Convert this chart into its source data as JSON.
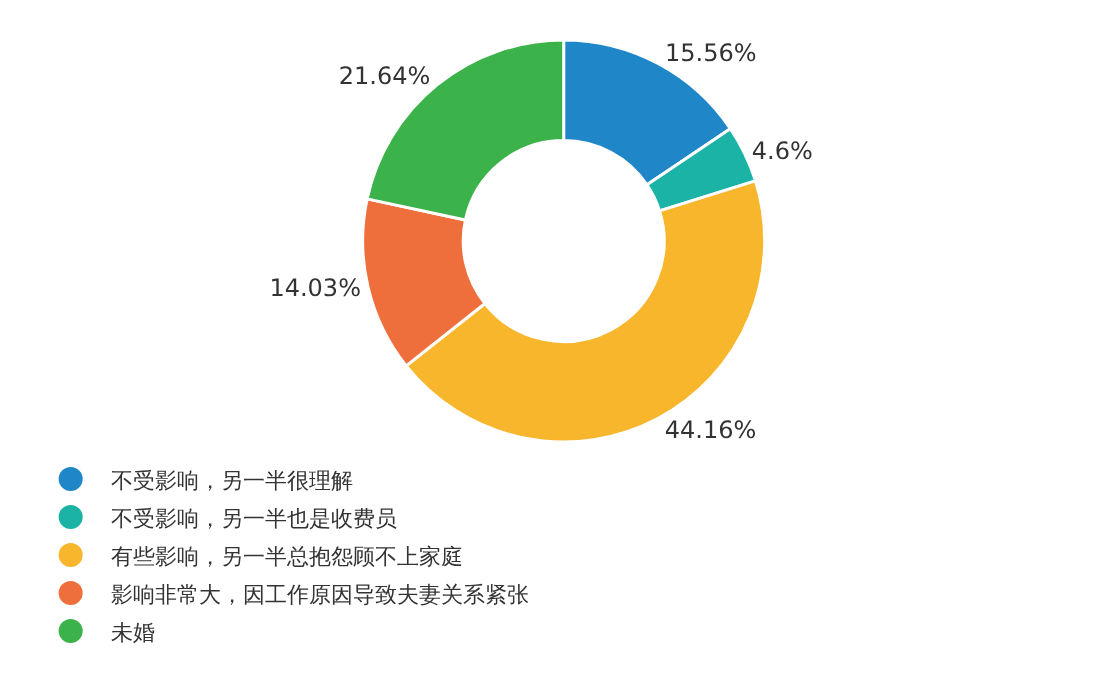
{
  "chart_data": {
    "type": "donut",
    "categories": [
      "不受影响，另一半很理解",
      "不受影响，另一半也是收费员",
      "有些影响，另一半总抱怨顾不上家庭",
      "影响非常大，因工作原因导致夫妻关系紧张",
      "未婚"
    ],
    "values": [
      15.56,
      4.6,
      44.16,
      14.03,
      21.64
    ],
    "value_labels": [
      "15.56%",
      "4.6%",
      "44.16%",
      "14.03%",
      "21.64%"
    ],
    "colors": [
      "#1f86c8",
      "#1ab3a6",
      "#f8b62d",
      "#ee6f3c",
      "#3cb24a"
    ],
    "legend": "bottom"
  }
}
